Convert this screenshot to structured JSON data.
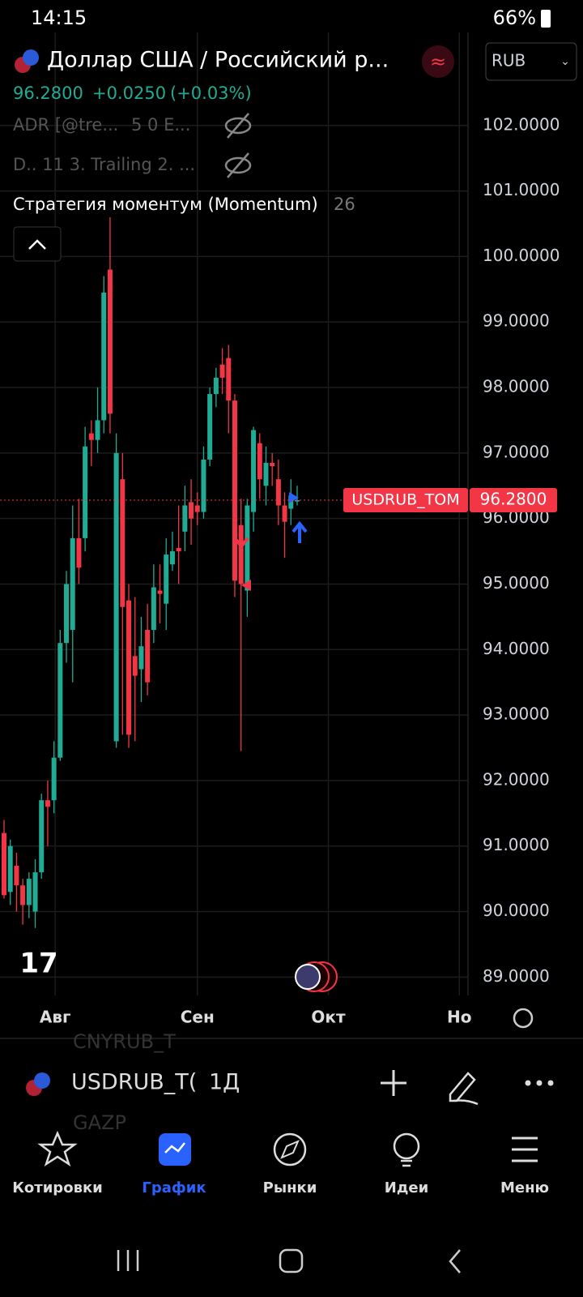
{
  "status_bar": {
    "time": "14:15",
    "battery": "66%"
  },
  "header": {
    "title": "Доллар США / Российский р...",
    "price": "96.2800",
    "change": "+0.0250",
    "change_percent": "(+0.03%)",
    "currency": "RUB"
  },
  "indicators": [
    {
      "name": "ADR [@tre...",
      "params": "5 0 E..."
    },
    {
      "name": "D.. 11 3. Trailing 2. ..."
    },
    {
      "name": "Стратегия моментум (Momentum)",
      "params": "26"
    }
  ],
  "chart_data": {
    "type": "candlestick",
    "up_color": "#22ab94",
    "down_color": "#f23645",
    "grid": true,
    "open": [
      91.2,
      90.3,
      90.7,
      90.4,
      90.1,
      90.0,
      90.6,
      91.7,
      91.7,
      92.35,
      94.1,
      94.3,
      95.7,
      95.7,
      97.3,
      97.2,
      97.5,
      99.8,
      92.6,
      96.6,
      94.75,
      93.9,
      93.7,
      94.3,
      94.3,
      94.9,
      94.7,
      95.3,
      95.55,
      95.8,
      96.25,
      96.2,
      96.1,
      96.9,
      97.9,
      98.35,
      98.45,
      97.8,
      95.9,
      94.9,
      96.1,
      97.15,
      96.5,
      96.85,
      96.6,
      96.2,
      96.15,
      96.26
    ],
    "high": [
      91.4,
      91.1,
      90.9,
      90.5,
      90.6,
      90.8,
      91.8,
      92.0,
      92.6,
      94.3,
      95.2,
      96.2,
      96.3,
      97.4,
      97.5,
      98.0,
      99.7,
      100.6,
      97.3,
      97.0,
      95.0,
      94.8,
      94.5,
      94.7,
      95.3,
      95.3,
      95.7,
      95.8,
      96.2,
      96.5,
      96.6,
      96.4,
      97.1,
      98.0,
      98.3,
      98.6,
      98.65,
      97.9,
      96.3,
      96.3,
      97.4,
      97.3,
      97.1,
      97.0,
      96.9,
      96.4,
      96.6,
      96.5
    ],
    "low": [
      90.2,
      90.1,
      90.0,
      89.8,
      89.9,
      89.75,
      90.5,
      91.0,
      91.5,
      92.3,
      93.8,
      93.5,
      95.0,
      95.5,
      96.8,
      97.0,
      97.3,
      97.3,
      92.5,
      92.7,
      92.5,
      92.6,
      93.2,
      93.3,
      94.1,
      94.4,
      94.3,
      95.2,
      95.0,
      95.5,
      95.6,
      95.9,
      96.0,
      96.8,
      97.7,
      97.9,
      97.3,
      94.8,
      92.45,
      94.5,
      95.8,
      96.3,
      96.2,
      96.5,
      95.9,
      95.4,
      95.9,
      96.2
    ],
    "close": [
      90.25,
      91.0,
      90.4,
      90.1,
      90.5,
      90.6,
      91.7,
      91.6,
      92.35,
      94.1,
      95.0,
      95.7,
      95.25,
      97.1,
      97.2,
      97.5,
      99.45,
      97.6,
      97.0,
      94.65,
      92.7,
      93.6,
      94.05,
      93.5,
      94.95,
      94.85,
      95.45,
      95.5,
      95.5,
      96.2,
      96.0,
      96.1,
      96.9,
      97.9,
      98.15,
      98.15,
      97.8,
      95.05,
      95.0,
      96.2,
      97.35,
      96.6,
      96.85,
      96.8,
      96.2,
      95.95,
      96.35,
      96.28
    ],
    "ylim": [
      88.72,
      103.42
    ],
    "yticks": [
      {
        "value": 89,
        "label": "89.0000"
      },
      {
        "value": 90,
        "label": "90.0000"
      },
      {
        "value": 91,
        "label": "91.0000"
      },
      {
        "value": 92,
        "label": "92.0000"
      },
      {
        "value": 93,
        "label": "93.0000"
      },
      {
        "value": 94,
        "label": "94.0000"
      },
      {
        "value": 95,
        "label": "95.0000"
      },
      {
        "value": 96,
        "label": "96.0000"
      },
      {
        "value": 97,
        "label": "97.0000"
      },
      {
        "value": 98,
        "label": "98.0000"
      },
      {
        "value": 99,
        "label": "99.0000"
      },
      {
        "value": 100,
        "label": "100.0000"
      },
      {
        "value": 101,
        "label": "101.0000"
      },
      {
        "value": 102,
        "label": "102.0000"
      }
    ],
    "xlim": [
      -0.65,
      74.4
    ],
    "xticks": [
      {
        "value": 8.2,
        "label": "Авг"
      },
      {
        "value": 31,
        "label": "Сен"
      },
      {
        "value": 52,
        "label": "Окт"
      },
      {
        "value": 73,
        "label": "Но"
      }
    ],
    "symbol_label": "USDRUB_TOM",
    "last_price": {
      "value": 96.28,
      "label": "96.2800"
    }
  },
  "toolbar": {
    "symbol": "USDRUB_T(",
    "interval": "1Д",
    "list_above": "CNYRUB_T",
    "list_below": "GAZP"
  },
  "nav": [
    "Котировки",
    "График",
    "Рынки",
    "Идеи",
    "Меню"
  ]
}
